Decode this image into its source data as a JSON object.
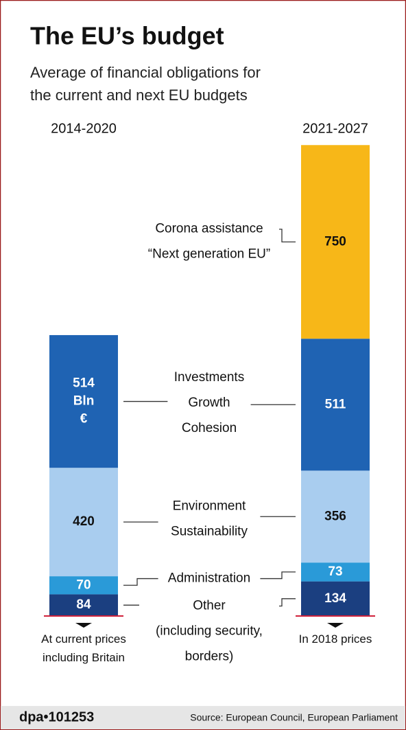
{
  "chart_data": {
    "type": "stacked-bar",
    "title": "The EU’s budget",
    "subtitle": "Average of financial obligations for the current and next EU budgets",
    "categories": [
      "2014-2020",
      "2021-2027"
    ],
    "category_notes": [
      "At current prices\nincluding Britain",
      "In 2018 prices"
    ],
    "series": [
      {
        "name": "Other\n(including security,\nborders)",
        "color": "#1b3f80",
        "values": [
          84,
          134
        ]
      },
      {
        "name": "Administration",
        "color": "#2a9ad8",
        "values": [
          70,
          73
        ]
      },
      {
        "name": "Environment\nSustainability",
        "color": "#a9cdef",
        "values": [
          420,
          356
        ]
      },
      {
        "name": "Investments\nGrowth\nCohesion",
        "color": "#1f63b3",
        "values": [
          514,
          511
        ],
        "value_labels": [
          "514 Bln €",
          "511"
        ]
      },
      {
        "name": "Corona assistance\n“Next generation EU”",
        "color": "#f7b718",
        "values": [
          null,
          750
        ]
      }
    ],
    "ylim": [
      0,
      1830
    ],
    "footer": {
      "id": "dpa•101253",
      "source": "Source: European Council, European Parliament"
    }
  }
}
